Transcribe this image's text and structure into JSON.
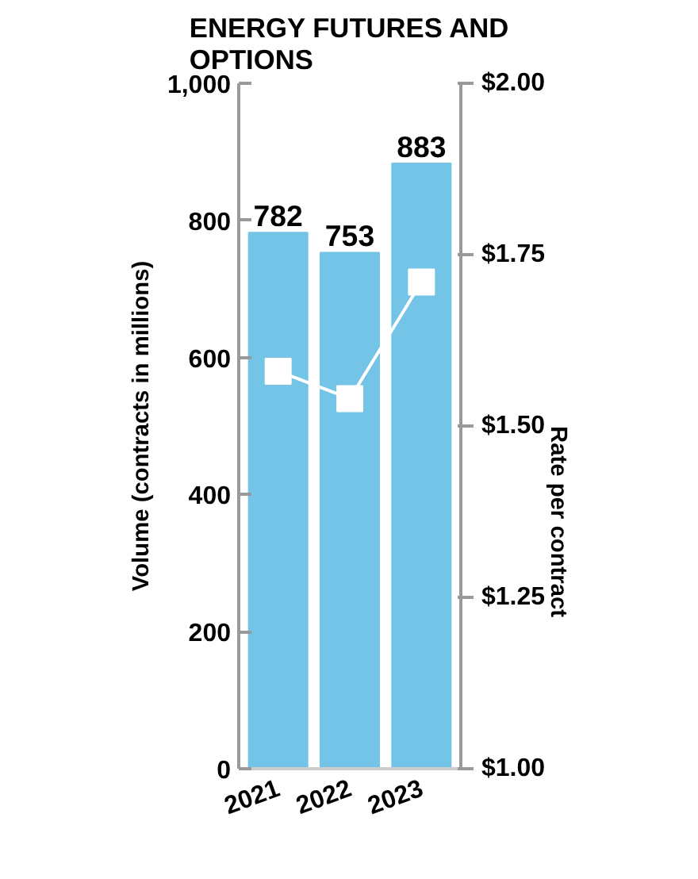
{
  "chart_data": {
    "type": "bar",
    "title": "ENERGY FUTURES AND OPTIONS",
    "categories": [
      "2021",
      "2022",
      "2023"
    ],
    "ylabel": "Volume (contracts in millions)",
    "y2label": "Rate per contract",
    "series": [
      {
        "color": "#73c4e6",
        "values": [
          782,
          753,
          883
        ],
        "value_labels": [
          "782",
          "753",
          "883"
        ]
      },
      {
        "type": "line",
        "axis": "y2",
        "color": "#ffffff",
        "marker": "square",
        "values": [
          1.58,
          1.54,
          1.71
        ]
      }
    ],
    "ylim": [
      0,
      1000
    ],
    "yticks": [
      0,
      200,
      400,
      600,
      {
        "value": 800,
        "label": "800"
      },
      {
        "value": 1000,
        "label": "1,000"
      }
    ],
    "y2lim": [
      1.0,
      2.0
    ],
    "y2ticks": [
      {
        "value": 1.0,
        "label": "$1.00"
      },
      {
        "value": 1.25,
        "label": "$1.25"
      },
      {
        "value": 1.5,
        "label": "$1.50"
      },
      {
        "value": 1.75,
        "label": "$1.75"
      },
      {
        "value": 2.0,
        "label": "$2.00"
      }
    ],
    "grid": false
  }
}
